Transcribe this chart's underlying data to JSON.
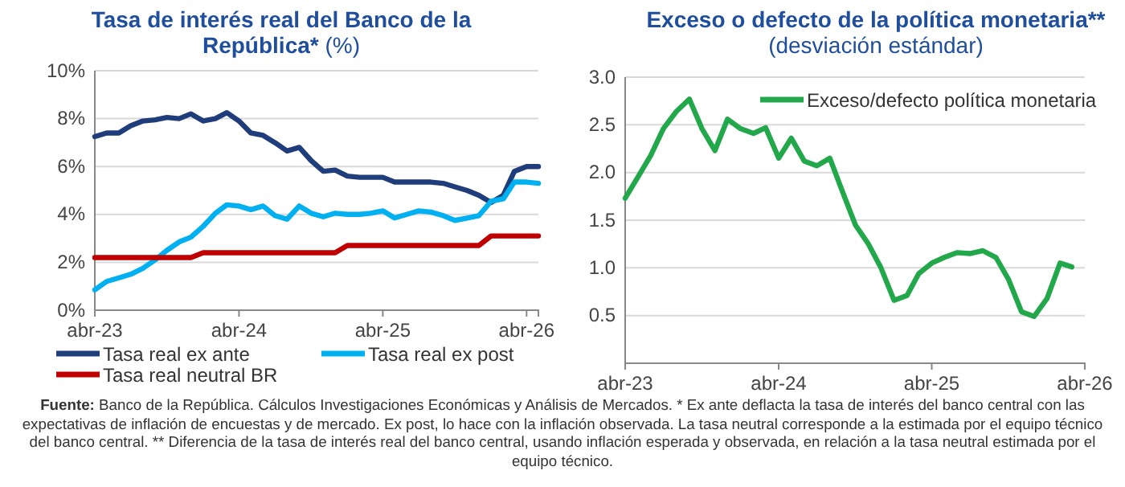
{
  "chart_data": [
    {
      "type": "line",
      "title": "Tasa de interés real del Banco de la República*",
      "subtitle": "(%)",
      "x": [
        "2023-04",
        "2023-05",
        "2023-06",
        "2023-07",
        "2023-08",
        "2023-09",
        "2023-10",
        "2023-11",
        "2023-12",
        "2024-01",
        "2024-02",
        "2024-03",
        "2024-04",
        "2024-05",
        "2024-06",
        "2024-07",
        "2024-08",
        "2024-09",
        "2024-10",
        "2024-11",
        "2024-12",
        "2025-01",
        "2025-02",
        "2025-03",
        "2025-04",
        "2025-05",
        "2025-06",
        "2025-07",
        "2025-08",
        "2025-09",
        "2025-10",
        "2025-11",
        "2025-12",
        "2026-01",
        "2026-02",
        "2026-03",
        "2026-04",
        "2026-05"
      ],
      "series": [
        {
          "name": "Tasa real ex ante",
          "color": "#1f3d7a",
          "values": [
            7.25,
            7.4,
            7.4,
            7.7,
            7.9,
            7.95,
            8.05,
            8.0,
            8.2,
            7.9,
            8.0,
            8.25,
            7.9,
            7.4,
            7.3,
            7.0,
            6.65,
            6.8,
            6.25,
            5.8,
            5.85,
            5.6,
            5.55,
            5.55,
            5.55,
            5.35,
            5.35,
            5.35,
            5.35,
            5.3,
            5.15,
            5.0,
            4.8,
            4.5,
            4.8,
            5.8,
            6.0,
            6.0
          ]
        },
        {
          "name": "Tasa real ex post",
          "color": "#00b0f0",
          "values": [
            0.85,
            1.2,
            1.35,
            1.5,
            1.75,
            2.1,
            2.5,
            2.85,
            3.05,
            3.5,
            4.05,
            4.4,
            4.35,
            4.2,
            4.35,
            3.95,
            3.8,
            4.35,
            4.05,
            3.9,
            4.05,
            4.0,
            4.0,
            4.05,
            4.15,
            3.85,
            4.0,
            4.15,
            4.1,
            3.95,
            3.75,
            3.85,
            3.95,
            4.55,
            4.65,
            5.35,
            5.35,
            5.3
          ]
        },
        {
          "name": "Tasa real neutral BR",
          "color": "#c00000",
          "values": [
            2.2,
            2.2,
            2.2,
            2.2,
            2.2,
            2.2,
            2.2,
            2.2,
            2.2,
            2.4,
            2.4,
            2.4,
            2.4,
            2.4,
            2.4,
            2.4,
            2.4,
            2.4,
            2.4,
            2.4,
            2.4,
            2.7,
            2.7,
            2.7,
            2.7,
            2.7,
            2.7,
            2.7,
            2.7,
            2.7,
            2.7,
            2.7,
            2.7,
            3.1,
            3.1,
            3.1,
            3.1,
            3.1
          ]
        }
      ],
      "xlim": [
        "2023-04",
        "2026-05"
      ],
      "xticks": [
        {
          "value": "2023-04",
          "label": "abr-23"
        },
        {
          "value": "2024-04",
          "label": "abr-24"
        },
        {
          "value": "2025-04",
          "label": "abr-25"
        },
        {
          "value": "2026-04",
          "label": "abr-26"
        }
      ],
      "ylim": [
        0,
        10
      ],
      "yticks": [
        {
          "value": 0,
          "label": "0%"
        },
        {
          "value": 2,
          "label": "2%"
        },
        {
          "value": 4,
          "label": "4%"
        },
        {
          "value": 6,
          "label": "6%"
        },
        {
          "value": 8,
          "label": "8%"
        },
        {
          "value": 10,
          "label": "10%"
        }
      ],
      "grid": "y",
      "legend": "bottom",
      "marker": "none",
      "line_style": "solid",
      "annotations": [
        "Fuente:",
        "Banco de la República. Cálculos Investigaciones Económicas y Análisis de Mercados. * Ex ante deflacta la tasa de interés del banco central con las expectativas de inflación de encuestas y de mercado. Ex post, lo hace con la inflación observada. La tasa neutral corresponde a la estimada por el equipo técnico del banco central. ** Diferencia de la tasa de interés real del banco central, usando inflación esperada y observada, en relación a la tasa neutral estimada por el equipo técnico."
      ]
    },
    {
      "type": "line",
      "title": "Exceso o defecto de la política monetaria**",
      "subtitle": "(desviación estándar)",
      "x": [
        "2023-04",
        "2023-05",
        "2023-06",
        "2023-07",
        "2023-08",
        "2023-09",
        "2023-10",
        "2023-11",
        "2023-12",
        "2024-01",
        "2024-02",
        "2024-03",
        "2024-04",
        "2024-05",
        "2024-06",
        "2024-07",
        "2024-08",
        "2024-09",
        "2024-10",
        "2024-11",
        "2024-12",
        "2025-01",
        "2025-02",
        "2025-03",
        "2025-04",
        "2025-05",
        "2025-06",
        "2025-07",
        "2025-08",
        "2025-09",
        "2025-10",
        "2025-11",
        "2025-12",
        "2026-01",
        "2026-02",
        "2026-03"
      ],
      "series": [
        {
          "name": "Exceso/defecto política monetaria",
          "color": "#22a84a",
          "values": [
            1.73,
            1.95,
            2.18,
            2.46,
            2.64,
            2.77,
            2.46,
            2.23,
            2.56,
            2.46,
            2.41,
            2.47,
            2.15,
            2.36,
            2.12,
            2.07,
            2.15,
            1.79,
            1.45,
            1.25,
            1.0,
            0.66,
            0.71,
            0.94,
            1.05,
            1.11,
            1.16,
            1.15,
            1.18,
            1.11,
            0.88,
            0.54,
            0.49,
            0.68,
            1.05,
            1.01
          ]
        }
      ],
      "xlim": [
        "2023-04",
        "2026-04"
      ],
      "xticks": [
        {
          "value": "2023-04",
          "label": "abr-23"
        },
        {
          "value": "2024-04",
          "label": "abr-24"
        },
        {
          "value": "2025-04",
          "label": "abr-25"
        },
        {
          "value": "2026-04",
          "label": "abr-26"
        }
      ],
      "ylim": [
        0,
        3
      ],
      "yticks": [
        {
          "value": 0.5,
          "label": "0.5"
        },
        {
          "value": 1,
          "label": "1.0"
        },
        {
          "value": 1.5,
          "label": "1.5"
        },
        {
          "value": 2,
          "label": "2.0"
        },
        {
          "value": 2.5,
          "label": "2.5"
        },
        {
          "value": 3,
          "label": "3.0"
        }
      ],
      "grid": "y",
      "legend": "top right",
      "marker": "none",
      "line_style": "solid"
    }
  ]
}
